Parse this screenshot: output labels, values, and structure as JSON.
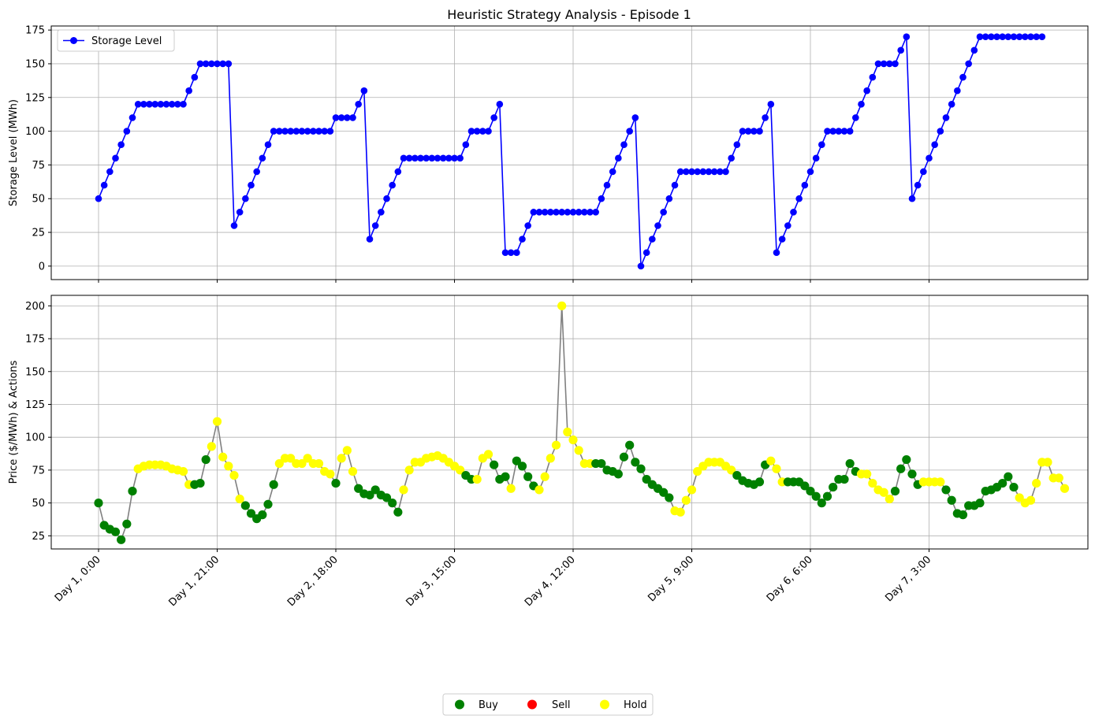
{
  "chart_data": [
    {
      "type": "line",
      "title": "Heuristic Strategy Analysis - Episode 1",
      "xlabel": "",
      "ylabel": "Storage Level (MWh)",
      "ylim": [
        -10,
        178
      ],
      "yticks": [
        0,
        25,
        50,
        75,
        100,
        125,
        150,
        175
      ],
      "grid": true,
      "legend": {
        "placement": "top-left",
        "entries": [
          "Storage Level"
        ]
      },
      "series": [
        {
          "name": "Storage Level",
          "color": "#0000ff",
          "x_step_hours": 1,
          "values": [
            50,
            60,
            70,
            80,
            90,
            100,
            110,
            120,
            120,
            120,
            120,
            120,
            120,
            120,
            120,
            120,
            130,
            140,
            150,
            150,
            150,
            150,
            150,
            150,
            30,
            40,
            50,
            60,
            70,
            80,
            90,
            100,
            100,
            100,
            100,
            100,
            100,
            100,
            100,
            100,
            100,
            100,
            110,
            110,
            110,
            110,
            120,
            130,
            20,
            30,
            40,
            50,
            60,
            70,
            80,
            80,
            80,
            80,
            80,
            80,
            80,
            80,
            80,
            80,
            80,
            90,
            100,
            100,
            100,
            100,
            110,
            120,
            10,
            10,
            10,
            20,
            30,
            40,
            40,
            40,
            40,
            40,
            40,
            40,
            40,
            40,
            40,
            40,
            40,
            50,
            60,
            70,
            80,
            90,
            100,
            110,
            0,
            10,
            20,
            30,
            40,
            50,
            60,
            70,
            70,
            70,
            70,
            70,
            70,
            70,
            70,
            70,
            80,
            90,
            100,
            100,
            100,
            100,
            110,
            120,
            10,
            20,
            30,
            40,
            50,
            60,
            70,
            80,
            90,
            100,
            100,
            100,
            100,
            100,
            110,
            120,
            130,
            140,
            150,
            150,
            150,
            150,
            160,
            170,
            50,
            60,
            70,
            80,
            90,
            100,
            110,
            120,
            130,
            140,
            150,
            160,
            170,
            170,
            170,
            170,
            170,
            170,
            170,
            170,
            170,
            170,
            170,
            170
          ]
        }
      ]
    },
    {
      "type": "line",
      "xlabel": "",
      "ylabel": "Price ($/MWh) & Actions",
      "ylim": [
        15,
        208
      ],
      "yticks": [
        25,
        50,
        75,
        100,
        125,
        150,
        175,
        200
      ],
      "grid": true,
      "x_step_hours": 1,
      "xticks": [
        {
          "label": "Day 1, 0:00",
          "hour": 0
        },
        {
          "label": "Day 1, 21:00",
          "hour": 21
        },
        {
          "label": "Day 2, 18:00",
          "hour": 42
        },
        {
          "label": "Day 3, 15:00",
          "hour": 63
        },
        {
          "label": "Day 4, 12:00",
          "hour": 84
        },
        {
          "label": "Day 5, 9:00",
          "hour": 105
        },
        {
          "label": "Day 6, 6:00",
          "hour": 126
        },
        {
          "label": "Day 7, 3:00",
          "hour": 147
        }
      ],
      "line_color": "#808080",
      "action_colors": {
        "B": "#008000",
        "S": "#ff0000",
        "H": "#ffff00"
      },
      "legend": {
        "placement": "bottom-center",
        "entries": [
          {
            "label": "Buy",
            "color": "#008000"
          },
          {
            "label": "Sell",
            "color": "#ff0000"
          },
          {
            "label": "Hold",
            "color": "#ffff00"
          }
        ]
      },
      "prices": [
        50,
        33,
        30,
        28,
        22,
        34,
        59,
        76,
        78,
        79,
        79,
        79,
        78,
        76,
        75,
        74,
        64,
        64,
        65,
        83,
        93,
        112,
        85,
        78,
        71,
        53,
        48,
        42,
        38,
        41,
        49,
        64,
        80,
        84,
        84,
        80,
        80,
        84,
        80,
        80,
        74,
        72,
        65,
        84,
        90,
        74,
        61,
        57,
        56,
        60,
        56,
        54,
        50,
        43,
        60,
        75,
        81,
        81,
        84,
        85,
        86,
        84,
        81,
        78,
        75,
        71,
        68,
        68,
        84,
        87,
        79,
        68,
        70,
        61,
        82,
        78,
        70,
        63,
        60,
        70,
        84,
        94,
        200,
        104,
        98,
        90,
        80,
        80,
        80,
        80,
        75,
        74,
        72,
        85,
        94,
        81,
        76,
        68,
        64,
        61,
        58,
        54,
        44,
        43,
        52,
        60,
        74,
        78,
        81,
        81,
        81,
        78,
        75,
        71,
        67,
        65,
        64,
        66,
        79,
        82,
        76,
        66,
        66,
        66,
        66,
        63,
        59,
        55,
        50,
        55,
        62,
        68,
        68,
        80,
        74,
        72,
        72,
        65,
        60,
        58,
        53,
        59,
        76,
        83,
        72,
        64,
        66,
        66,
        66,
        66,
        60,
        52,
        42,
        41,
        48,
        48,
        50,
        59,
        60,
        62,
        65,
        70,
        62,
        54,
        50,
        52,
        65,
        81,
        81,
        69,
        69,
        61
      ],
      "actions": "BBBBBBBHHHHHHHHHHBBBHHHHHHBBBBBBHHHHHHHHHHBHHHBBBBBBBBHHHHHHHHHHHBBHHHBBBHBBBBHHHHHHHHHHBBBBBBBBBBBBBBHHHHHHHHHHHBBBBBBHHHBBBBBBBBBBBBBHHHHHHBBBBBHHHHBBBBBBBBBBBBBHHHHHHHHHHH"
    }
  ]
}
